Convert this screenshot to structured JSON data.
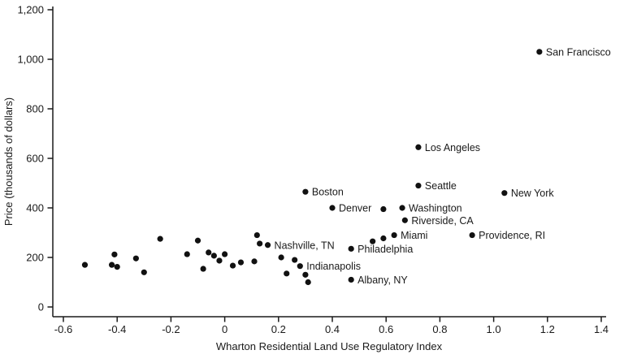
{
  "chart_data": {
    "type": "scatter",
    "title": "",
    "xlabel": "Wharton Residential Land Use Regulatory Index",
    "ylabel": "Price (thousands of dollars)",
    "xlim": [
      -0.6,
      1.4
    ],
    "ylim": [
      0,
      1200
    ],
    "grid": false,
    "legend": "none",
    "x_axis": {
      "ticks": [
        {
          "value": -0.6,
          "label": "-0.6"
        },
        {
          "value": -0.4,
          "label": "-0.4"
        },
        {
          "value": -0.2,
          "label": "-0.2"
        },
        {
          "value": 0,
          "label": "0"
        },
        {
          "value": 0.2,
          "label": "0.2"
        },
        {
          "value": 0.4,
          "label": "0.4"
        },
        {
          "value": 0.6,
          "label": "0.6"
        },
        {
          "value": 0.8,
          "label": "0.8"
        },
        {
          "value": 1.0,
          "label": "1.0"
        },
        {
          "value": 1.2,
          "label": "1.2"
        },
        {
          "value": 1.4,
          "label": "1.4"
        }
      ]
    },
    "y_axis": {
      "ticks": [
        {
          "value": 0,
          "label": "0"
        },
        {
          "value": 200,
          "label": "200"
        },
        {
          "value": 400,
          "label": "400"
        },
        {
          "value": 600,
          "label": "600"
        },
        {
          "value": 800,
          "label": "800"
        },
        {
          "value": 1000,
          "label": "1,000"
        },
        {
          "value": 1200,
          "label": "1,200"
        }
      ]
    },
    "labeled_points": [
      {
        "city": "San Francisco",
        "x": 1.17,
        "y": 1030
      },
      {
        "city": "Los Angeles",
        "x": 0.72,
        "y": 645
      },
      {
        "city": "Seattle",
        "x": 0.72,
        "y": 490
      },
      {
        "city": "New York",
        "x": 1.04,
        "y": 460
      },
      {
        "city": "Boston",
        "x": 0.3,
        "y": 465
      },
      {
        "city": "Denver",
        "x": 0.4,
        "y": 400
      },
      {
        "city": "Washington",
        "x": 0.66,
        "y": 400
      },
      {
        "city": "Riverside, CA",
        "x": 0.67,
        "y": 350
      },
      {
        "city": "Miami",
        "x": 0.63,
        "y": 290
      },
      {
        "city": "Providence, RI",
        "x": 0.92,
        "y": 290
      },
      {
        "city": "Nashville, TN",
        "x": 0.16,
        "y": 250
      },
      {
        "city": "Philadelphia",
        "x": 0.47,
        "y": 235
      },
      {
        "city": "Indianapolis",
        "x": 0.28,
        "y": 165
      },
      {
        "city": "Albany, NY",
        "x": 0.47,
        "y": 110
      }
    ],
    "unlabeled_points": [
      [
        -0.52,
        170
      ],
      [
        -0.42,
        170
      ],
      [
        -0.41,
        212
      ],
      [
        -0.4,
        162
      ],
      [
        -0.33,
        196
      ],
      [
        -0.3,
        140
      ],
      [
        -0.24,
        275
      ],
      [
        -0.14,
        213
      ],
      [
        -0.1,
        268
      ],
      [
        -0.08,
        154
      ],
      [
        -0.06,
        220
      ],
      [
        -0.04,
        207
      ],
      [
        -0.02,
        187
      ],
      [
        0.0,
        213
      ],
      [
        0.03,
        167
      ],
      [
        0.06,
        180
      ],
      [
        0.11,
        184
      ],
      [
        0.12,
        290
      ],
      [
        0.13,
        256
      ],
      [
        0.21,
        200
      ],
      [
        0.23,
        135
      ],
      [
        0.26,
        190
      ],
      [
        0.3,
        130
      ],
      [
        0.31,
        100
      ],
      [
        0.55,
        265
      ],
      [
        0.59,
        277
      ],
      [
        0.59,
        395
      ]
    ]
  },
  "colors": {
    "background": "#ffffff",
    "point": "#111111",
    "axis": "#1a1a1a",
    "text": "#1a1a1a"
  }
}
